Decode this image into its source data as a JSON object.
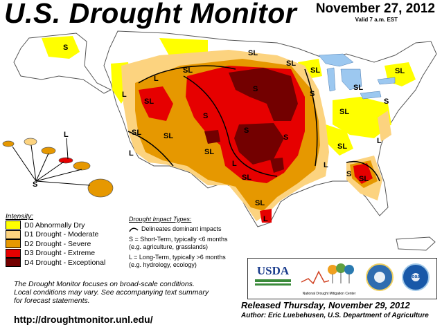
{
  "header": {
    "title": "U.S. Drought Monitor",
    "date": "November 27, 2012",
    "valid": "Valid 7 a.m. EST"
  },
  "legend": {
    "title": "Intensity:",
    "items": [
      {
        "label": "D0 Abnormally Dry",
        "color": "#ffff00"
      },
      {
        "label": "D1 Drought - Moderate",
        "color": "#fcd37f"
      },
      {
        "label": "D2 Drought - Severe",
        "color": "#e69800"
      },
      {
        "label": "D3 Drought - Extreme",
        "color": "#e60000"
      },
      {
        "label": "D4 Drought - Exceptional",
        "color": "#730000"
      }
    ]
  },
  "impact": {
    "title": "Drought Impact Types:",
    "delineates": "Delineates dominant impacts",
    "short_term_1": "S = Short-Term, typically <6 months",
    "short_term_2": "(e.g. agriculture, grasslands)",
    "long_term_1": "L = Long-Term, typically >6 months",
    "long_term_2": "(e.g. hydrology, ecology)"
  },
  "map_labels": {
    "S": "S",
    "L": "L",
    "SL": "SL"
  },
  "note": {
    "line1": "The Drought Monitor focuses on broad-scale conditions.",
    "line2": "Local conditions may vary. See accompanying text summary",
    "line3": "for forecast statements."
  },
  "footer": {
    "url": "http://droughtmonitor.unl.edu/",
    "released": "Released Thursday, November 29, 2012",
    "author": "Author: Eric Luebehusen, U.S. Department of Agriculture"
  },
  "logos": {
    "usda": "USDA",
    "ndmc": "National Drought Mitigation Center",
    "noaa": "noaa"
  }
}
